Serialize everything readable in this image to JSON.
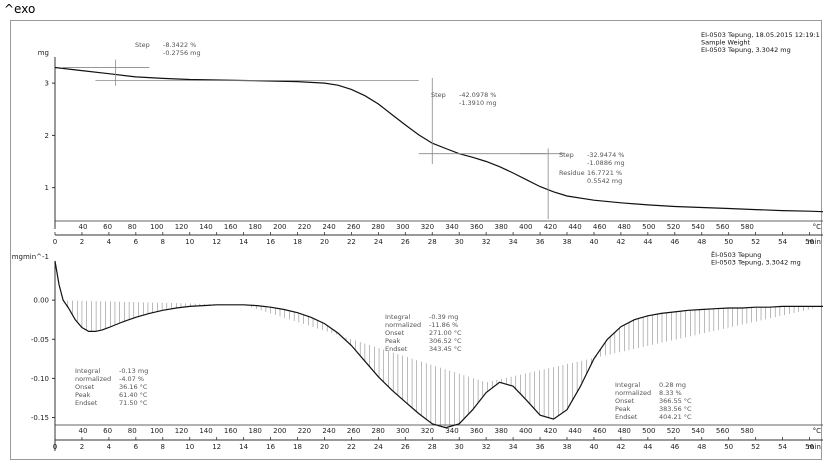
{
  "corner_label": "^exo",
  "chart_data": [
    {
      "type": "line",
      "name": "TGA",
      "ylabel": "mg",
      "ylim": [
        0.4,
        3.5
      ],
      "y_ticks": [
        1,
        2,
        3
      ],
      "time_axis": {
        "label": "min",
        "min": 0,
        "max": 57,
        "ticks": [
          0,
          2,
          4,
          6,
          8,
          10,
          12,
          14,
          16,
          18,
          20,
          22,
          24,
          26,
          28,
          30,
          32,
          34,
          36,
          38,
          40,
          42,
          44,
          46,
          48,
          50,
          52,
          54,
          56
        ]
      },
      "temp_axis": {
        "unit": "°C",
        "ticks": [
          40,
          60,
          80,
          100,
          120,
          140,
          160,
          180,
          200,
          220,
          240,
          260,
          280,
          300,
          320,
          340,
          360,
          380,
          400,
          420,
          440,
          460,
          480,
          500,
          520,
          540,
          560,
          580
        ]
      },
      "header": [
        "EI-0503 Tepung, 18.05.2015 12:19:1",
        "Sample Weight",
        "EI-0503 Tepung, 3.3042 mg"
      ],
      "x": [
        0,
        2,
        4,
        6,
        8,
        10,
        12,
        14,
        16,
        18,
        20,
        21,
        22,
        23,
        24,
        25,
        26,
        27,
        28,
        29,
        30,
        31,
        32,
        33,
        34,
        35,
        36,
        37,
        38,
        40,
        42,
        44,
        46,
        48,
        50,
        52,
        54,
        56,
        57
      ],
      "y": [
        3.3,
        3.24,
        3.18,
        3.12,
        3.09,
        3.07,
        3.06,
        3.05,
        3.04,
        3.03,
        3.0,
        2.96,
        2.88,
        2.76,
        2.6,
        2.4,
        2.2,
        2.01,
        1.85,
        1.75,
        1.65,
        1.58,
        1.5,
        1.4,
        1.28,
        1.15,
        1.02,
        0.92,
        0.84,
        0.76,
        0.71,
        0.67,
        0.64,
        0.62,
        0.6,
        0.58,
        0.56,
        0.55,
        0.54
      ],
      "annotations": [
        {
          "label": "Step",
          "lines": [
            "-8.3422 %",
            "-0.2756 mg"
          ]
        },
        {
          "label": "Step",
          "lines": [
            "-42.0978 %",
            "-1.3910 mg"
          ]
        },
        {
          "label": "Step",
          "lines": [
            "-32.9474 %",
            "-1.0886 mg"
          ]
        },
        {
          "label": "Residue",
          "lines": [
            "16.7721 %",
            "0.5542 mg"
          ]
        }
      ]
    },
    {
      "type": "line",
      "name": "DTG",
      "ylabel": "mgmin^-1",
      "ylim": [
        -0.18,
        0.05
      ],
      "y_ticks": [
        0.0,
        -0.05,
        -0.1,
        -0.15
      ],
      "y_tick_labels": [
        "0.00",
        "-0.05",
        "-0.10",
        "-0.15"
      ],
      "time_axis": {
        "label": "min",
        "min": 0,
        "max": 57,
        "ticks": [
          0,
          2,
          4,
          6,
          8,
          10,
          12,
          14,
          16,
          18,
          20,
          22,
          24,
          26,
          28,
          30,
          32,
          34,
          36,
          38,
          40,
          42,
          44,
          46,
          48,
          50,
          52,
          54,
          56
        ]
      },
      "temp_axis": {
        "unit": "°C",
        "ticks": [
          40,
          60,
          80,
          100,
          120,
          140,
          160,
          180,
          200,
          220,
          240,
          260,
          280,
          300,
          320,
          340,
          360,
          380,
          400,
          420,
          440,
          460,
          480,
          500,
          520,
          540,
          560,
          580
        ]
      },
      "header": [
        "ЁI-0503 Tepung",
        "EI-0503 Tepung, 3.3042 mg"
      ],
      "x": [
        0,
        0.3,
        0.6,
        1,
        1.5,
        2,
        2.5,
        3,
        3.5,
        4,
        5,
        6,
        7,
        8,
        9,
        10,
        11,
        12,
        13,
        14,
        15,
        16,
        17,
        18,
        19,
        20,
        21,
        22,
        23,
        24,
        25,
        26,
        27,
        28,
        29,
        30,
        31,
        32,
        33,
        34,
        35,
        36,
        37,
        38,
        39,
        40,
        41,
        42,
        43,
        44,
        45,
        46,
        47,
        48,
        49,
        50,
        51,
        52,
        53,
        54,
        55,
        56,
        57
      ],
      "y": [
        0.05,
        0.02,
        0.0,
        -0.01,
        -0.025,
        -0.035,
        -0.04,
        -0.04,
        -0.038,
        -0.035,
        -0.028,
        -0.022,
        -0.017,
        -0.013,
        -0.01,
        -0.008,
        -0.007,
        -0.006,
        -0.006,
        -0.006,
        -0.007,
        -0.009,
        -0.012,
        -0.016,
        -0.022,
        -0.03,
        -0.042,
        -0.058,
        -0.078,
        -0.098,
        -0.115,
        -0.13,
        -0.145,
        -0.158,
        -0.163,
        -0.158,
        -0.14,
        -0.118,
        -0.105,
        -0.11,
        -0.128,
        -0.147,
        -0.152,
        -0.14,
        -0.11,
        -0.075,
        -0.05,
        -0.034,
        -0.025,
        -0.02,
        -0.017,
        -0.015,
        -0.013,
        -0.012,
        -0.011,
        -0.01,
        -0.01,
        -0.009,
        -0.009,
        -0.008,
        -0.008,
        -0.008,
        -0.008
      ],
      "annotations": [
        {
          "rows": [
            [
              "Integral",
              "-0.13 mg"
            ],
            [
              "normalized",
              "-4.07 %"
            ],
            [
              "Onset",
              "36.16 °C"
            ],
            [
              "Peak",
              "61.40 °C"
            ],
            [
              "Endset",
              "71.50 °C"
            ]
          ]
        },
        {
          "rows": [
            [
              "Integral",
              "-0.39 mg"
            ],
            [
              "normalized",
              "-11.86 %"
            ],
            [
              "Onset",
              "271.00 °C"
            ],
            [
              "Peak",
              "306.52 °C"
            ],
            [
              "Endset",
              "343.45 °C"
            ]
          ]
        },
        {
          "rows": [
            [
              "Integral",
              "0.28 mg"
            ],
            [
              "normalized",
              "8.33 %"
            ],
            [
              "Onset",
              "366.55 °C"
            ],
            [
              "Peak",
              "383.56 °C"
            ],
            [
              "Endset",
              "404.21 °C"
            ]
          ]
        }
      ]
    }
  ]
}
